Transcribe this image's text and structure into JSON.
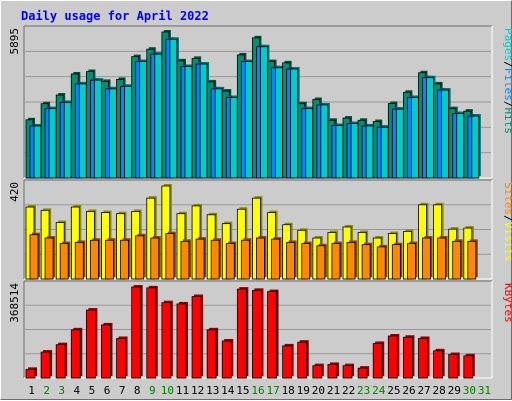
{
  "title": "Daily usage for April 2022",
  "chart_data": [
    {
      "type": "bar",
      "panel": "top",
      "max_label": "5895",
      "ymax": 5895,
      "right_label": [
        {
          "text": "Pages",
          "color": "#00cccc"
        },
        {
          "text": "/",
          "color": "#000000"
        },
        {
          "text": "Files",
          "color": "#0088ff"
        },
        {
          "text": "/",
          "color": "#000000"
        },
        {
          "text": "Hits",
          "color": "#008f6f"
        }
      ],
      "categories": [
        "1",
        "2",
        "3",
        "4",
        "5",
        "6",
        "7",
        "8",
        "9",
        "10",
        "11",
        "12",
        "13",
        "14",
        "15",
        "16",
        "17",
        "18",
        "19",
        "20",
        "21",
        "22",
        "23",
        "24",
        "25",
        "26",
        "27",
        "28",
        "29",
        "30"
      ],
      "series": [
        {
          "name": "Hits",
          "color": "#008f6f",
          "values": [
            2350,
            3000,
            3350,
            4200,
            4300,
            3900,
            3980,
            4900,
            5200,
            5895,
            4730,
            4830,
            3880,
            3510,
            4970,
            5660,
            4700,
            4650,
            3000,
            3170,
            2330,
            2420,
            2330,
            2280,
            3010,
            3460,
            4250,
            3800,
            2800,
            2700
          ]
        },
        {
          "name": "Files",
          "color": "#0088ff",
          "values": [
            2100,
            2800,
            3050,
            3800,
            3950,
            3600,
            3700,
            4700,
            5000,
            5600,
            4500,
            4600,
            3600,
            3250,
            4700,
            5300,
            4450,
            4400,
            2800,
            2950,
            2120,
            2200,
            2100,
            2050,
            2780,
            3250,
            4050,
            3550,
            2600,
            2500
          ]
        },
        {
          "name": "Pages",
          "color": "#00cccc",
          "values": [
            2100,
            2800,
            3050,
            3800,
            3950,
            3600,
            3700,
            4700,
            5000,
            5600,
            4500,
            4600,
            3600,
            3250,
            4700,
            5300,
            4450,
            4400,
            2800,
            2950,
            2120,
            2200,
            2100,
            2050,
            2780,
            3250,
            4050,
            3550,
            2600,
            2500
          ]
        }
      ]
    },
    {
      "type": "bar",
      "panel": "middle",
      "max_label": "420",
      "ymax": 420,
      "right_label": [
        {
          "text": "Sites",
          "color": "#ff8800"
        },
        {
          "text": "/",
          "color": "#000000"
        },
        {
          "text": "Visits",
          "color": "#ffff00"
        }
      ],
      "categories": [
        "1",
        "2",
        "3",
        "4",
        "5",
        "6",
        "7",
        "8",
        "9",
        "10",
        "11",
        "12",
        "13",
        "14",
        "15",
        "16",
        "17",
        "18",
        "19",
        "20",
        "21",
        "22",
        "23",
        "24",
        "25",
        "26",
        "27",
        "28",
        "29",
        "30"
      ],
      "series": [
        {
          "name": "Visits",
          "color": "#ffff00",
          "values": [
            325,
            310,
            255,
            325,
            305,
            300,
            295,
            305,
            365,
            420,
            295,
            330,
            290,
            250,
            315,
            365,
            300,
            245,
            220,
            185,
            210,
            235,
            210,
            185,
            205,
            215,
            335,
            335,
            225,
            230
          ]
        },
        {
          "name": "Sites",
          "color": "#ff8800",
          "values": [
            200,
            185,
            160,
            165,
            175,
            175,
            175,
            195,
            185,
            205,
            170,
            180,
            175,
            160,
            175,
            185,
            180,
            165,
            160,
            150,
            160,
            165,
            155,
            145,
            155,
            160,
            185,
            185,
            170,
            170
          ]
        }
      ]
    },
    {
      "type": "bar",
      "panel": "bottom",
      "max_label": "368514",
      "ymax": 368514,
      "right_label": [
        {
          "text": "KBytes",
          "color": "#ff0000"
        }
      ],
      "categories": [
        "1",
        "2",
        "3",
        "4",
        "5",
        "6",
        "7",
        "8",
        "9",
        "10",
        "11",
        "12",
        "13",
        "14",
        "15",
        "16",
        "17",
        "18",
        "19",
        "20",
        "21",
        "22",
        "23",
        "24",
        "25",
        "26",
        "27",
        "28",
        "29",
        "30"
      ],
      "series": [
        {
          "name": "KBytes",
          "color": "#ff0000",
          "values": [
            35000,
            105000,
            135000,
            195000,
            275000,
            215000,
            160000,
            368514,
            365000,
            305000,
            300000,
            330000,
            195000,
            150000,
            360000,
            355000,
            350000,
            130000,
            145000,
            50000,
            55000,
            50000,
            40000,
            140000,
            170000,
            165000,
            160000,
            110000,
            95000,
            90000
          ]
        }
      ]
    }
  ],
  "x_labels": [
    {
      "text": "1",
      "color": "#000000"
    },
    {
      "text": "2",
      "color": "#008000"
    },
    {
      "text": "3",
      "color": "#008000"
    },
    {
      "text": "4",
      "color": "#000000"
    },
    {
      "text": "5",
      "color": "#000000"
    },
    {
      "text": "6",
      "color": "#000000"
    },
    {
      "text": "7",
      "color": "#000000"
    },
    {
      "text": "8",
      "color": "#000000"
    },
    {
      "text": "9",
      "color": "#008000"
    },
    {
      "text": "10",
      "color": "#008000"
    },
    {
      "text": "11",
      "color": "#000000"
    },
    {
      "text": "12",
      "color": "#000000"
    },
    {
      "text": "13",
      "color": "#000000"
    },
    {
      "text": "14",
      "color": "#000000"
    },
    {
      "text": "15",
      "color": "#000000"
    },
    {
      "text": "16",
      "color": "#008000"
    },
    {
      "text": "17",
      "color": "#008000"
    },
    {
      "text": "18",
      "color": "#000000"
    },
    {
      "text": "19",
      "color": "#000000"
    },
    {
      "text": "20",
      "color": "#000000"
    },
    {
      "text": "21",
      "color": "#000000"
    },
    {
      "text": "22",
      "color": "#000000"
    },
    {
      "text": "23",
      "color": "#008000"
    },
    {
      "text": "24",
      "color": "#008000"
    },
    {
      "text": "25",
      "color": "#000000"
    },
    {
      "text": "26",
      "color": "#000000"
    },
    {
      "text": "27",
      "color": "#000000"
    },
    {
      "text": "28",
      "color": "#000000"
    },
    {
      "text": "29",
      "color": "#000000"
    },
    {
      "text": "30",
      "color": "#008000"
    },
    {
      "text": "31",
      "color": "#008000"
    }
  ],
  "colors": {
    "background": "#cccccc",
    "plot_background": "#cccccc",
    "grid": "#999999",
    "title": "#0000ff"
  }
}
